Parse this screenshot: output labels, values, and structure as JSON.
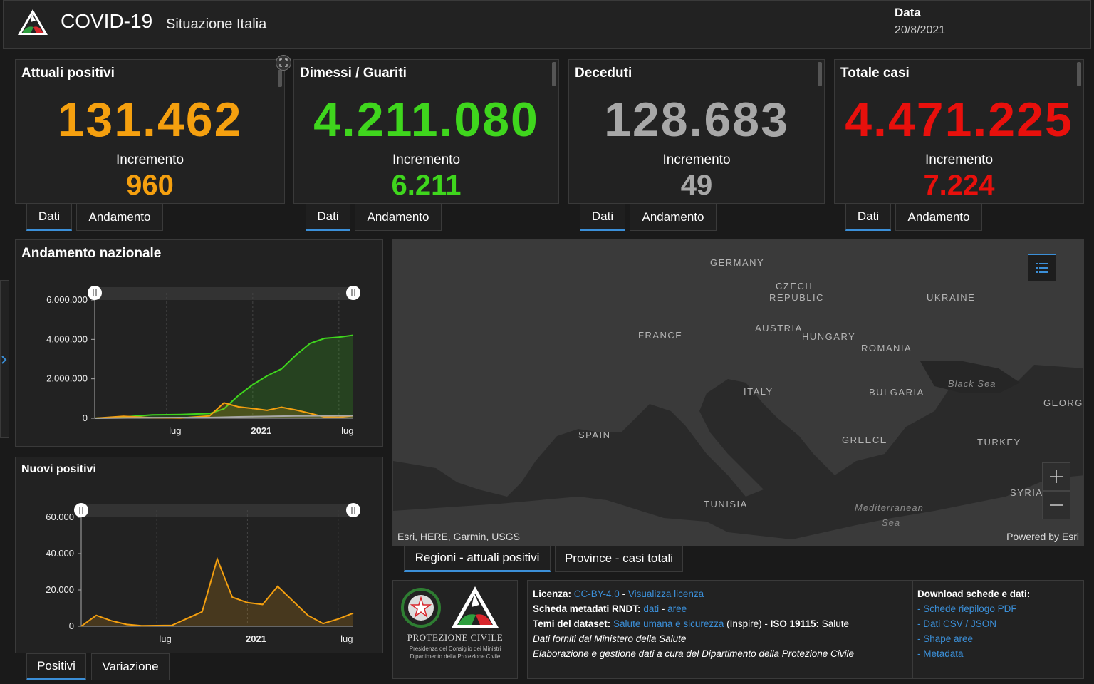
{
  "header": {
    "title": "COVID-19",
    "subtitle": "Situazione Italia",
    "date_label": "Data",
    "date_value": "20/8/2021"
  },
  "cards": [
    {
      "title": "Attuali positivi",
      "value": "131.462",
      "incr_label": "Incremento",
      "incr_value": "960",
      "color": "#f5a00f"
    },
    {
      "title": "Dimessi / Guariti",
      "value": "4.211.080",
      "incr_label": "Incremento",
      "incr_value": "6.211",
      "color": "#3fd61d"
    },
    {
      "title": "Deceduti",
      "value": "128.683",
      "incr_label": "Incremento",
      "incr_value": "49",
      "color": "#a7a7a7"
    },
    {
      "title": "Totale casi",
      "value": "4.471.225",
      "incr_label": "Incremento",
      "incr_value": "7.224",
      "color": "#e8100c"
    }
  ],
  "card_tabs": {
    "dati": "Dati",
    "andamento": "Andamento"
  },
  "chart_national": {
    "title": "Andamento nazionale",
    "y_ticks": [
      "6.000.000",
      "4.000.000",
      "2.000.000",
      "0"
    ],
    "x_ticks": [
      "lug",
      "2021",
      "lug"
    ]
  },
  "chart_new": {
    "title": "Nuovi positivi",
    "y_ticks": [
      "60.000",
      "40.000",
      "20.000",
      "0"
    ],
    "x_ticks": [
      "lug",
      "2021",
      "lug"
    ]
  },
  "chart_tabs": {
    "positivi": "Positivi",
    "variazione": "Variazione"
  },
  "chart_data": [
    {
      "type": "area",
      "title": "Andamento nazionale",
      "ylim": [
        0,
        6000000
      ],
      "x_range": [
        "2020-02",
        "2021-08"
      ],
      "series": [
        {
          "name": "",
          "color": "#3fd61d",
          "x": [
            "2020-02",
            "2020-04",
            "2020-06",
            "2020-08",
            "2020-10",
            "2020-11",
            "2020-12",
            "2021-01",
            "2021-02",
            "2021-03",
            "2021-04",
            "2021-05",
            "2021-06",
            "2021-07",
            "2021-08"
          ],
          "values": [
            0,
            60000,
            170000,
            190000,
            240000,
            480000,
            1150000,
            1700000,
            2150000,
            2500000,
            3200000,
            3800000,
            4050000,
            4110000,
            4211080
          ]
        },
        {
          "name": "",
          "color": "#f5a00f",
          "x": [
            "2020-02",
            "2020-04",
            "2020-06",
            "2020-08",
            "2020-10",
            "2020-11",
            "2020-12",
            "2021-01",
            "2021-02",
            "2021-03",
            "2021-04",
            "2021-05",
            "2021-06",
            "2021-07",
            "2021-08"
          ],
          "values": [
            0,
            100000,
            30000,
            13000,
            120000,
            780000,
            580000,
            500000,
            400000,
            560000,
            420000,
            250000,
            60000,
            50000,
            131462
          ]
        },
        {
          "name": "",
          "color": "#a7a7a7",
          "x": [
            "2020-02",
            "2020-06",
            "2020-10",
            "2020-12",
            "2021-02",
            "2021-04",
            "2021-06",
            "2021-08"
          ],
          "values": [
            0,
            34000,
            36000,
            74000,
            95000,
            118000,
            127000,
            128683
          ]
        }
      ]
    },
    {
      "type": "area",
      "title": "Nuovi positivi",
      "ylim": [
        0,
        60000
      ],
      "x_range": [
        "2020-02",
        "2021-08"
      ],
      "series": [
        {
          "name": "",
          "color": "#f5a00f",
          "x": [
            "2020-02",
            "2020-03",
            "2020-04",
            "2020-05",
            "2020-06",
            "2020-08",
            "2020-10",
            "2020-11",
            "2020-12",
            "2021-01",
            "2021-02",
            "2021-03",
            "2021-04",
            "2021-05",
            "2021-06",
            "2021-07",
            "2021-08"
          ],
          "values": [
            0,
            6000,
            3000,
            1000,
            300,
            500,
            8000,
            37000,
            16000,
            13000,
            12000,
            22000,
            14000,
            6000,
            1500,
            4000,
            7224
          ]
        }
      ]
    }
  ],
  "map": {
    "labels": [
      "GERMANY",
      "CZECH",
      "REPUBLIC",
      "UKRAINE",
      "FRANCE",
      "AUSTRIA",
      "HUNGARY",
      "ROMANIA",
      "ITALY",
      "BULGARIA",
      "Black Sea",
      "GEORGI",
      "SPAIN",
      "GREECE",
      "TURKEY",
      "SYRIA",
      "TUNISIA",
      "Mediterranean",
      "Sea"
    ],
    "credit": "Esri, HERE, Garmin, USGS",
    "powered": "Powered by Esri"
  },
  "map_tabs": {
    "regioni": "Regioni - attuali positivi",
    "province": "Province - casi totali"
  },
  "logo": {
    "name": "PROTEZIONE CIVILE",
    "line1": "Presidenza del Consiglio dei Ministri",
    "line2": "Dipartimento della Protezione Civile"
  },
  "info": {
    "licenza_label": "Licenza:",
    "licenza_link": "CC-BY-4.0",
    "licenza_sep": " - ",
    "licenza_view": "Visualizza licenza",
    "rndt_label": "Scheda metadati RNDT:",
    "rndt_dati": "dati",
    "rndt_sep": " - ",
    "rndt_aree": "aree",
    "temi_label": "Temi del dataset:",
    "temi_link": "Salute umana e sicurezza",
    "temi_inspire": " (Inspire) - ",
    "iso_label": "ISO 19115:",
    "iso_value": " Salute",
    "line4": "Dati forniti dal Ministero della Salute",
    "line5": "Elaborazione e gestione dati a cura del Dipartimento della Protezione Civile"
  },
  "downloads": {
    "title": "Download schede e dati:",
    "items": [
      "Schede riepilogo PDF",
      "Dati CSV / JSON",
      "Shape aree",
      "Metadata"
    ]
  }
}
